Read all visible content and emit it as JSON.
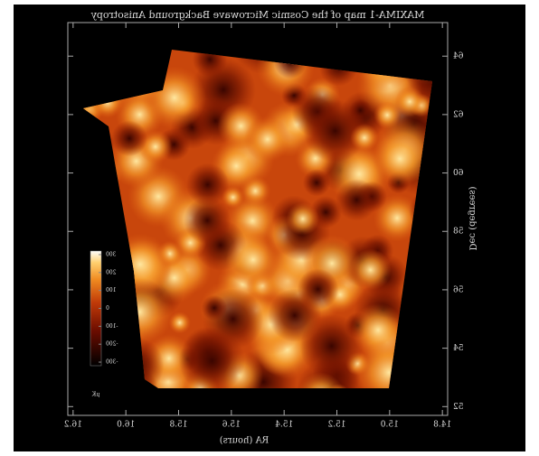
{
  "chart_data": {
    "type": "sky-map",
    "title": "MAXIMA-1 map of the Cosmic Microwave Background Anisotropy",
    "x_label": "RA (hours)",
    "y_label": "Dec (degrees)",
    "xlim": [
      14.78,
      16.22
    ],
    "xticks": [
      14.8,
      {
        "value": 15,
        "label": "15.0"
      },
      15.2,
      15.4,
      15.6,
      15.8,
      {
        "value": 16,
        "label": "16.0"
      },
      16.2
    ],
    "ylim": [
      51.7,
      65.15
    ],
    "yticks": [
      52,
      54,
      56,
      58,
      60,
      62,
      64
    ],
    "mirrored": true,
    "colorbar": {
      "lim": [
        -320,
        320
      ],
      "ticks": [
        -300,
        -200,
        -100,
        0,
        100,
        200,
        300
      ],
      "label": "μK"
    }
  }
}
